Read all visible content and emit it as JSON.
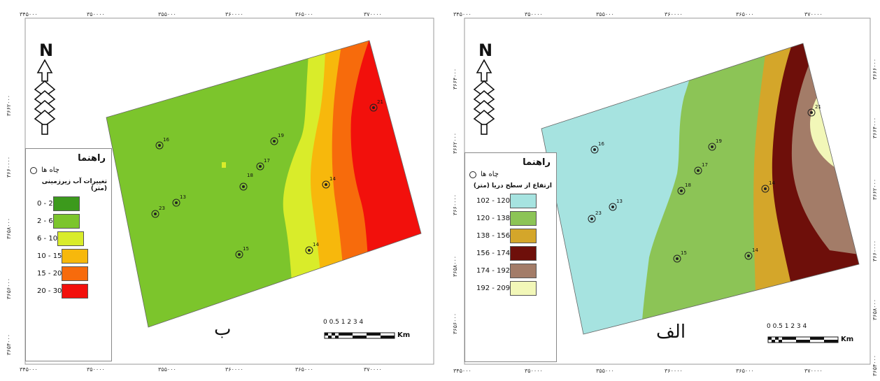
{
  "panels": {
    "right": {
      "label": "الف",
      "legend": {
        "title": "راهنما",
        "wells_label": "چاه ها",
        "subtitle": "ارتفاع از سطح دریا (متر)",
        "classes": [
          {
            "range": "102 - 120",
            "color": "#a6e3e0"
          },
          {
            "range": "120 - 138",
            "color": "#8cc456"
          },
          {
            "range": "138 - 156",
            "color": "#d4a62a"
          },
          {
            "range": "156 - 174",
            "color": "#6e0f0a"
          },
          {
            "range": "174 - 192",
            "color": "#a37c68"
          },
          {
            "range": "192 - 209",
            "color": "#f2f7b8"
          }
        ]
      },
      "scale": {
        "numbers": "0 0.5 1     2     3     4",
        "unit": "Km"
      },
      "top_ticks": [
        "۳۴۵۰۰۰",
        "۳۵۰۰۰۰",
        "۳۵۵۰۰۰",
        "۳۶۰۰۰۰",
        "۳۶۵۰۰۰",
        "۳۷۰۰۰۰"
      ],
      "bottom_ticks": [
        "۳۴۵۰۰۰",
        "۳۵۰۰۰۰",
        "۳۵۵۰۰۰",
        "۳۶۰۰۰۰",
        "۳۶۵۰۰۰",
        "۳۷۰۰۰۰"
      ],
      "side_ticks": [
        "۳۶۶۶۰۰۰",
        "۳۶۶۴۰۰۰",
        "۳۶۶۲۰۰۰",
        "۳۶۶۰۰۰۰",
        "۳۶۵۸۰۰۰",
        "۳۶۵۶۰۰۰",
        "۳۶۵۴۰۰۰"
      ],
      "wells": [
        "21",
        "16",
        "19",
        "17",
        "18",
        "14",
        "13",
        "23",
        "15"
      ]
    },
    "left": {
      "label": "ب",
      "legend": {
        "title": "راهنما",
        "wells_label": "چاه ها",
        "subtitle": "تغییرات آب زیرزمینی (متر)",
        "classes": [
          {
            "range": "0 - 2",
            "color": "#3c9a1c"
          },
          {
            "range": "2 - 6",
            "color": "#7cc52c"
          },
          {
            "range": "6 - 10",
            "color": "#d9ec2a"
          },
          {
            "range": "10 - 15",
            "color": "#f7b80c"
          },
          {
            "range": "15 - 20",
            "color": "#f76b0c"
          },
          {
            "range": "20 - 30",
            "color": "#f2100c"
          }
        ]
      },
      "scale": {
        "numbers": "0 0.5 1     2     3     4",
        "unit": "Km"
      },
      "top_ticks": [
        "۳۴۵۰۰۰",
        "۳۵۰۰۰۰",
        "۳۵۵۰۰۰",
        "۳۶۰۰۰۰",
        "۳۶۵۰۰۰",
        "۳۷۰۰۰۰"
      ],
      "bottom_ticks": [
        "۳۴۵۰۰۰",
        "۳۵۰۰۰۰",
        "۳۵۵۰۰۰",
        "۳۶۰۰۰۰",
        "۳۶۵۰۰۰",
        "۳۷۰۰۰۰"
      ],
      "side_ticks": [
        "۳۶۶۲۰۰۰",
        "۳۶۶۰۰۰۰",
        "۳۶۵۸۰۰۰",
        "۳۶۵۶۰۰۰",
        "۳۶۵۴۰۰۰"
      ],
      "wells": [
        "21",
        "16",
        "19",
        "17",
        "18",
        "14",
        "13",
        "23",
        "15"
      ]
    }
  },
  "north": "N"
}
